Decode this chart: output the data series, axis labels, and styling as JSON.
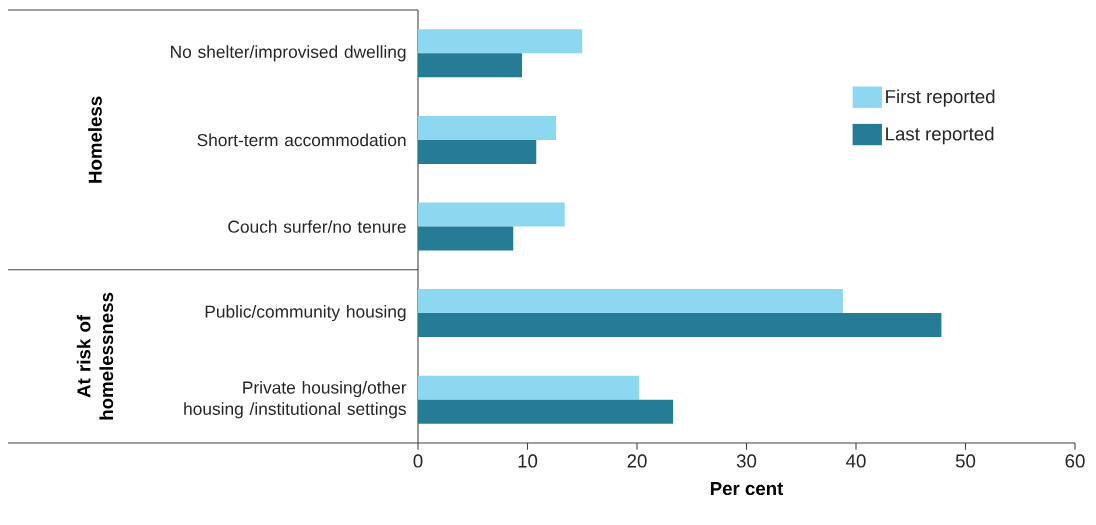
{
  "chart_data": {
    "type": "bar",
    "orientation": "horizontal",
    "categories": [
      "No shelter/improvised dwelling",
      "Short-term accommodation",
      "Couch surfer/no tenure",
      "Public/community housing",
      "Private housing/other housing /institutional settings"
    ],
    "series": [
      {
        "name": "First reported",
        "color": "#8dd7f0",
        "values": [
          15.0,
          12.6,
          13.4,
          38.8,
          20.2
        ]
      },
      {
        "name": "Last reported",
        "color": "#257c94",
        "values": [
          9.5,
          10.8,
          8.7,
          47.8,
          23.3
        ]
      }
    ],
    "xlabel": "Per cent",
    "xlim": [
      0,
      60
    ],
    "xticks": [
      0,
      10,
      20,
      30,
      40,
      50,
      60
    ],
    "annotations": [
      "Homeless",
      "At risk of homelessness"
    ],
    "legend": "right",
    "grid": false
  }
}
